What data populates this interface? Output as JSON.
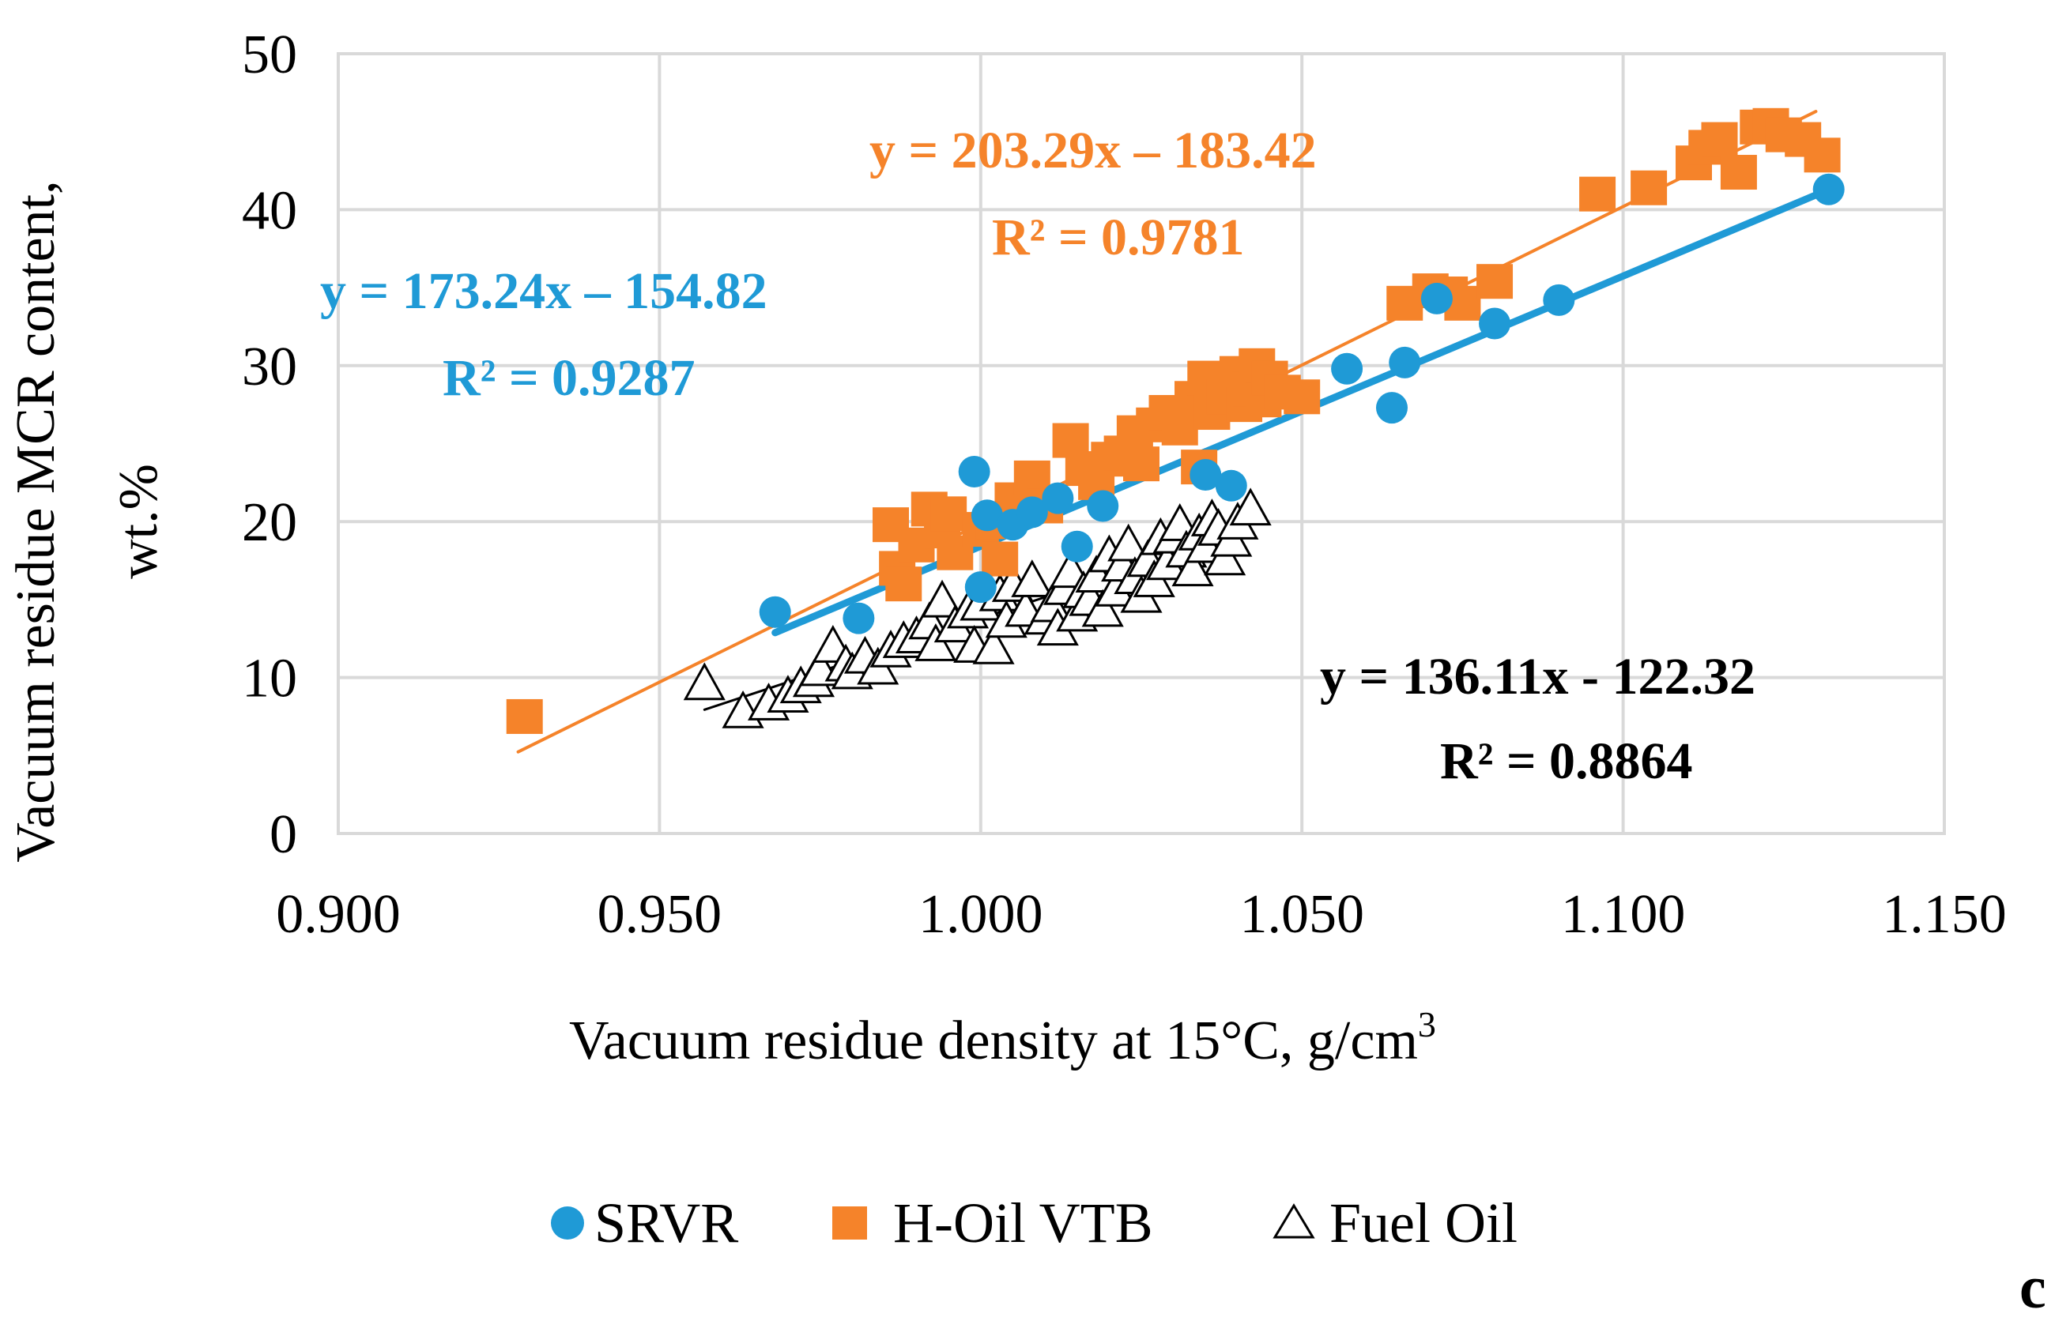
{
  "chart_data": {
    "type": "scatter",
    "panel_label": "c",
    "xlabel": "Vacuum residue density at 15°C, g/cm",
    "xlabel_superscript": "3",
    "ylabel_line1": "Vacuum residue MCR content,",
    "ylabel_line2": "wt.%",
    "xlim": [
      0.9,
      1.15
    ],
    "ylim": [
      0,
      50
    ],
    "x_ticks": [
      0.9,
      0.95,
      1.0,
      1.05,
      1.1,
      1.15
    ],
    "x_tick_labels": [
      "0.900",
      "0.950",
      "1.000",
      "1.050",
      "1.100",
      "1.150"
    ],
    "y_ticks": [
      0,
      10,
      20,
      30,
      40,
      50
    ],
    "y_tick_labels": [
      "0",
      "10",
      "20",
      "30",
      "40",
      "50"
    ],
    "grid": true,
    "legend_position": "bottom",
    "series": [
      {
        "name": "SRVR",
        "marker": "circle",
        "color": "#1f9ad6",
        "trendline": {
          "slope": 173.24,
          "intercept": -154.82,
          "x_range": [
            0.968,
            1.132
          ]
        },
        "equation": "y = 173.24x – 154.82",
        "r2": "R² = 0.9287",
        "points": [
          [
            0.968,
            14.2
          ],
          [
            0.981,
            13.8
          ],
          [
            0.999,
            23.2
          ],
          [
            1.001,
            20.4
          ],
          [
            1.005,
            19.8
          ],
          [
            1.008,
            20.6
          ],
          [
            1.015,
            18.4
          ],
          [
            1.019,
            21.0
          ],
          [
            1.035,
            23.0
          ],
          [
            1.039,
            22.3
          ],
          [
            1.057,
            29.8
          ],
          [
            1.064,
            27.3
          ],
          [
            1.066,
            30.2
          ],
          [
            1.071,
            34.3
          ],
          [
            1.08,
            32.7
          ],
          [
            1.09,
            34.2
          ],
          [
            1.132,
            41.3
          ],
          [
            1.0,
            15.8
          ],
          [
            1.012,
            21.5
          ]
        ]
      },
      {
        "name": "H-Oil VTB",
        "marker": "square",
        "color": "#f5832a",
        "trendline": {
          "slope": 203.29,
          "intercept": -183.42,
          "x_range": [
            0.928,
            1.13
          ]
        },
        "equation": "y = 203.29x – 183.42",
        "r2": "R² = 0.9781",
        "points": [
          [
            0.929,
            7.5
          ],
          [
            0.986,
            19.8
          ],
          [
            0.987,
            17.0
          ],
          [
            0.988,
            16.0
          ],
          [
            0.99,
            18.5
          ],
          [
            0.992,
            20.8
          ],
          [
            0.994,
            19.4
          ],
          [
            0.995,
            20.5
          ],
          [
            0.996,
            18.0
          ],
          [
            1.0,
            19.5
          ],
          [
            1.002,
            20.0
          ],
          [
            1.003,
            17.6
          ],
          [
            1.005,
            21.4
          ],
          [
            1.008,
            22.8
          ],
          [
            1.01,
            21.0
          ],
          [
            1.014,
            25.2
          ],
          [
            1.016,
            23.4
          ],
          [
            1.018,
            22.5
          ],
          [
            1.02,
            24.0
          ],
          [
            1.022,
            24.4
          ],
          [
            1.024,
            25.7
          ],
          [
            1.025,
            23.7
          ],
          [
            1.027,
            26.2
          ],
          [
            1.029,
            27.0
          ],
          [
            1.031,
            26.0
          ],
          [
            1.033,
            27.9
          ],
          [
            1.034,
            23.5
          ],
          [
            1.035,
            29.2
          ],
          [
            1.036,
            27.0
          ],
          [
            1.038,
            28.0
          ],
          [
            1.04,
            29.5
          ],
          [
            1.041,
            27.5
          ],
          [
            1.042,
            28.5
          ],
          [
            1.043,
            30.0
          ],
          [
            1.044,
            27.8
          ],
          [
            1.045,
            29.2
          ],
          [
            1.047,
            28.3
          ],
          [
            1.05,
            28.0
          ],
          [
            1.066,
            34.0
          ],
          [
            1.07,
            34.8
          ],
          [
            1.073,
            34.6
          ],
          [
            1.075,
            34.0
          ],
          [
            1.08,
            35.4
          ],
          [
            1.096,
            41.0
          ],
          [
            1.104,
            41.4
          ],
          [
            1.111,
            43.0
          ],
          [
            1.113,
            44.0
          ],
          [
            1.115,
            44.5
          ],
          [
            1.118,
            42.4
          ],
          [
            1.121,
            45.3
          ],
          [
            1.123,
            45.4
          ],
          [
            1.125,
            44.8
          ],
          [
            1.128,
            44.5
          ],
          [
            1.131,
            43.5
          ]
        ]
      },
      {
        "name": "Fuel Oil",
        "marker": "triangle-open",
        "color": "#000000",
        "trendline": {
          "slope": 136.11,
          "intercept": -122.32,
          "x_range": [
            0.957,
            1.042
          ]
        },
        "equation": "y = 136.11x - 122.32",
        "r2": "R² = 0.8864",
        "points": [
          [
            0.957,
            9.6
          ],
          [
            0.963,
            7.8
          ],
          [
            0.967,
            8.3
          ],
          [
            0.97,
            8.8
          ],
          [
            0.972,
            9.4
          ],
          [
            0.974,
            9.8
          ],
          [
            0.975,
            10.5
          ],
          [
            0.977,
            12.0
          ],
          [
            0.979,
            10.8
          ],
          [
            0.98,
            10.3
          ],
          [
            0.982,
            11.3
          ],
          [
            0.984,
            10.6
          ],
          [
            0.986,
            11.7
          ],
          [
            0.988,
            12.3
          ],
          [
            0.99,
            12.6
          ],
          [
            0.992,
            13.5
          ],
          [
            0.993,
            12.1
          ],
          [
            0.994,
            14.9
          ],
          [
            0.996,
            13.3
          ],
          [
            0.998,
            14.2
          ],
          [
            0.999,
            12.0
          ],
          [
            1.0,
            14.7
          ],
          [
            1.002,
            11.9
          ],
          [
            1.003,
            15.3
          ],
          [
            1.004,
            13.6
          ],
          [
            1.005,
            15.9
          ],
          [
            1.007,
            14.3
          ],
          [
            1.008,
            16.2
          ],
          [
            1.01,
            13.8
          ],
          [
            1.011,
            14.6
          ],
          [
            1.012,
            13.1
          ],
          [
            1.013,
            15.7
          ],
          [
            1.014,
            16.8
          ],
          [
            1.015,
            14.0
          ],
          [
            1.016,
            15.5
          ],
          [
            1.017,
            15.0
          ],
          [
            1.018,
            16.5
          ],
          [
            1.019,
            14.3
          ],
          [
            1.02,
            17.8
          ],
          [
            1.021,
            15.6
          ],
          [
            1.022,
            17.2
          ],
          [
            1.023,
            18.5
          ],
          [
            1.024,
            16.4
          ],
          [
            1.025,
            15.2
          ],
          [
            1.026,
            17.5
          ],
          [
            1.027,
            16.2
          ],
          [
            1.028,
            18.9
          ],
          [
            1.029,
            17.3
          ],
          [
            1.03,
            19.0
          ],
          [
            1.031,
            19.8
          ],
          [
            1.032,
            18.1
          ],
          [
            1.033,
            16.9
          ],
          [
            1.034,
            19.2
          ],
          [
            1.035,
            18.4
          ],
          [
            1.036,
            20.1
          ],
          [
            1.037,
            19.5
          ],
          [
            1.038,
            17.6
          ],
          [
            1.039,
            18.8
          ],
          [
            1.04,
            19.9
          ],
          [
            1.042,
            20.8
          ]
        ]
      }
    ]
  }
}
